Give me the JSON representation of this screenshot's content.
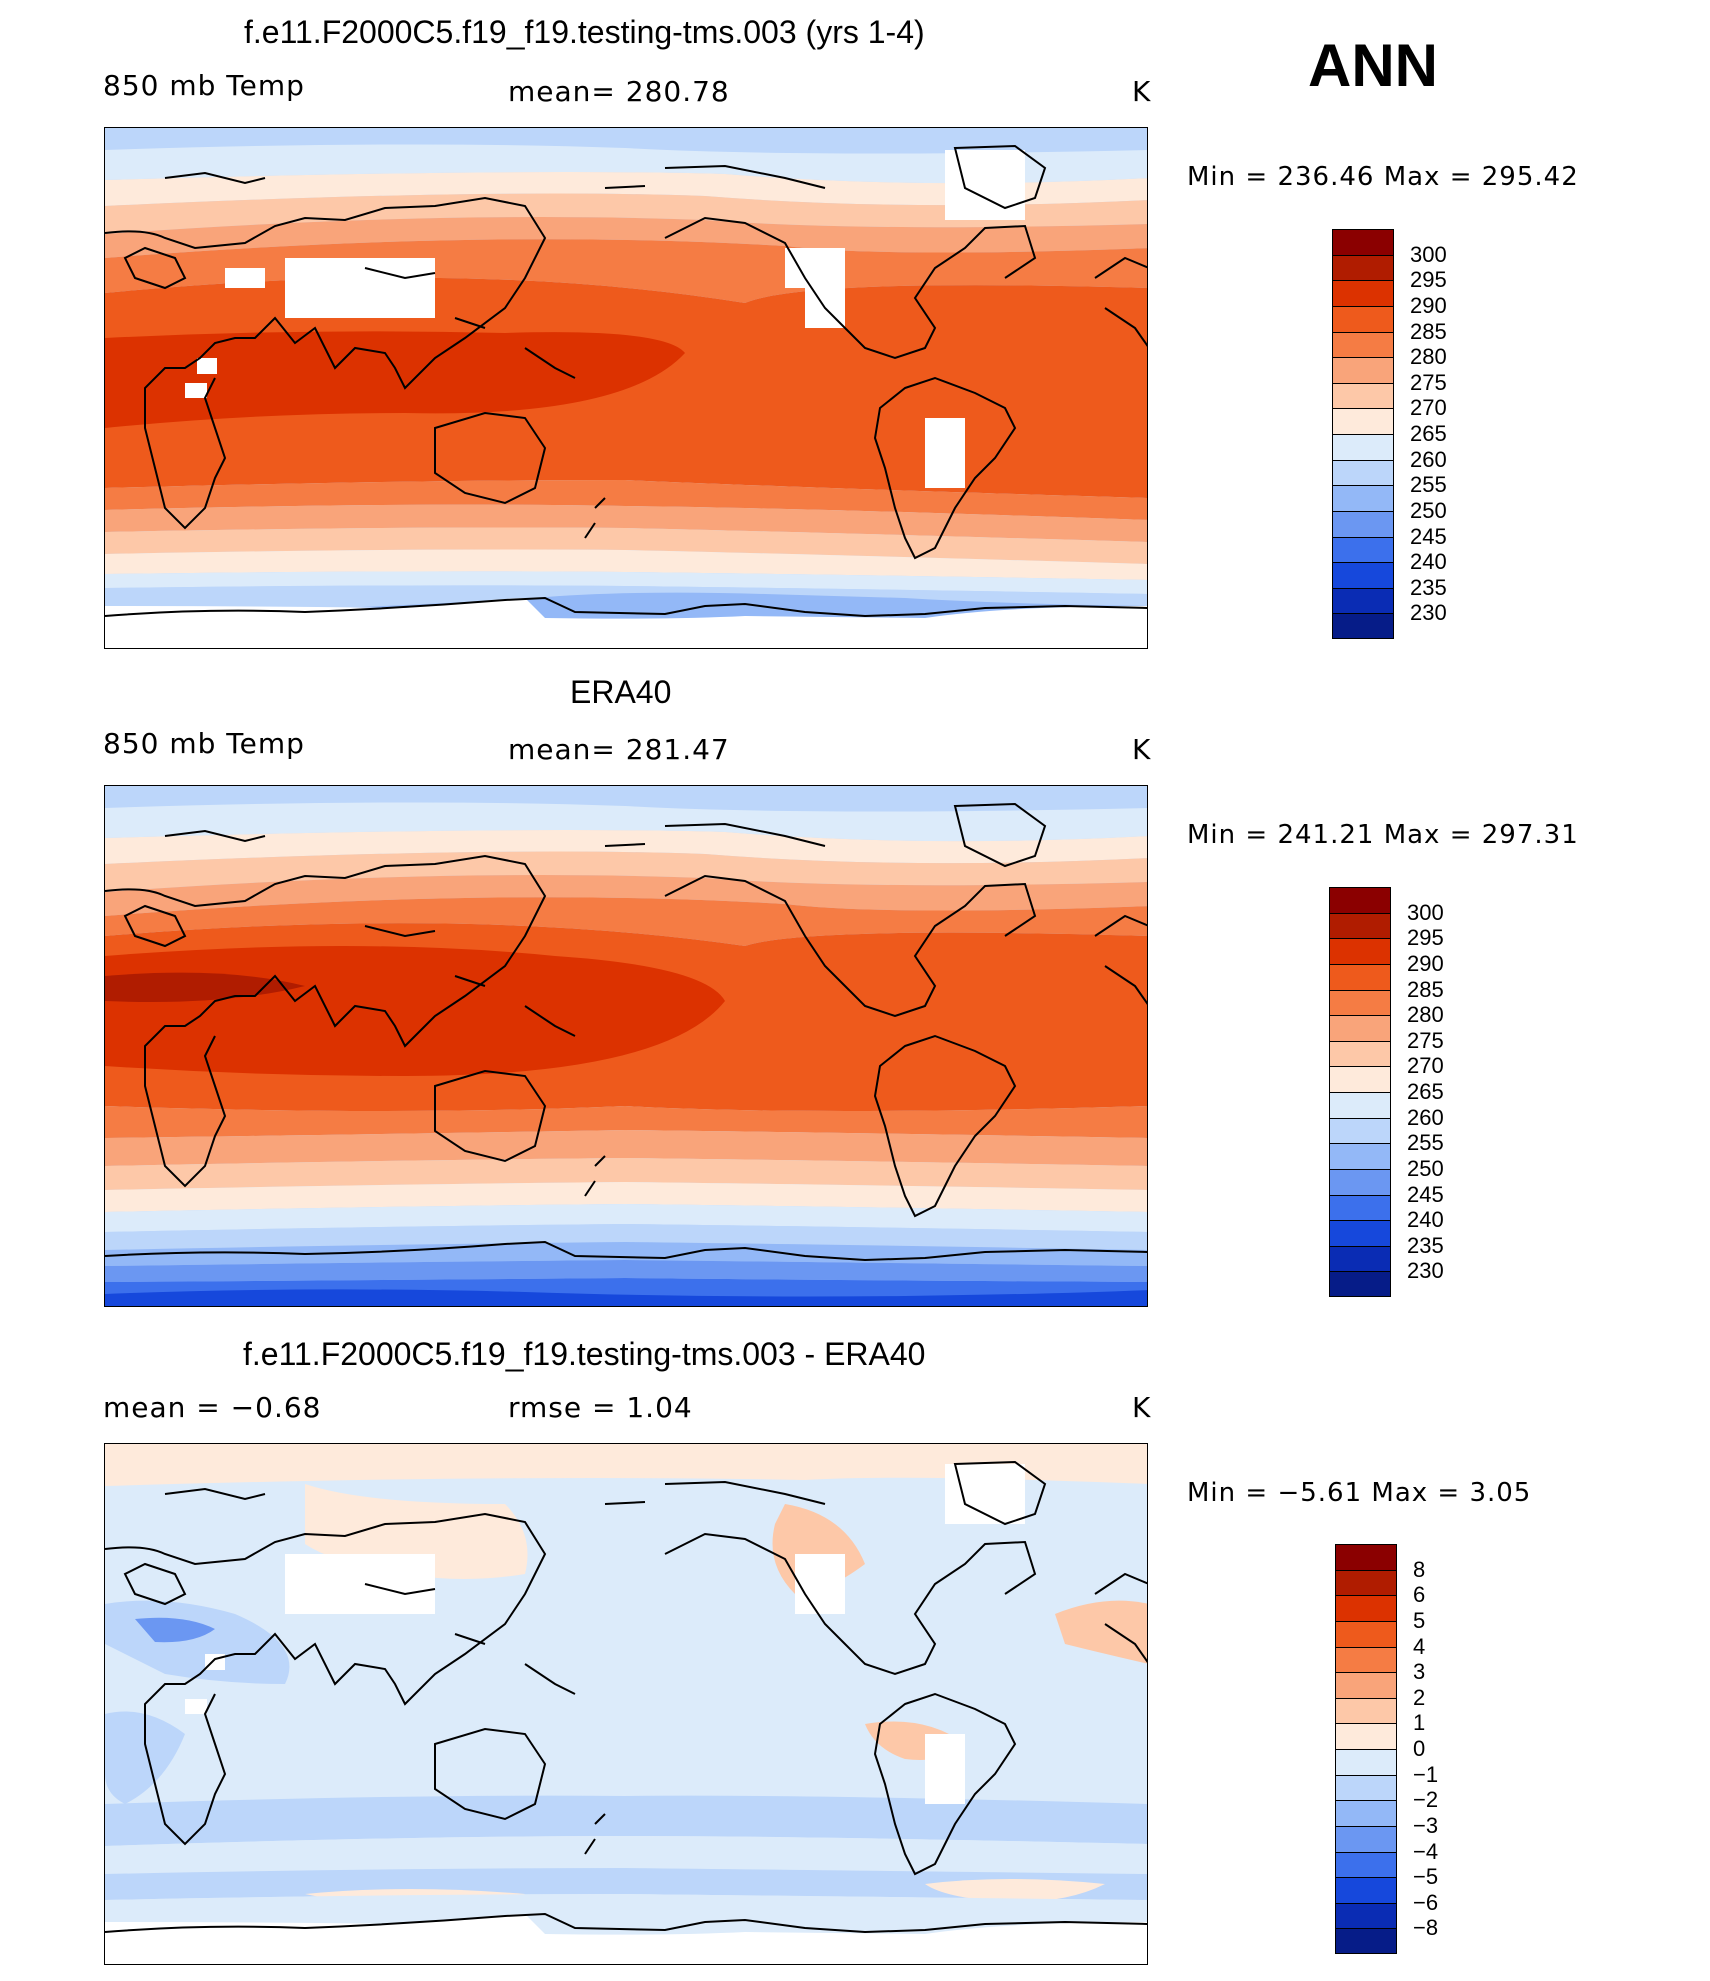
{
  "season": "ANN",
  "panels": [
    {
      "id": "model",
      "title": "f.e11.F2000C5.f19_f19.testing-tms.003 (yrs 1-4)",
      "left_label": "850 mb Temp",
      "center_label": "mean=  280.78",
      "units": "K",
      "minmax": "Min  =  236.46  Max  =  295.42",
      "colorbar_levels": [
        "300",
        "295",
        "290",
        "285",
        "280",
        "275",
        "270",
        "265",
        "260",
        "255",
        "250",
        "245",
        "240",
        "235",
        "230"
      ]
    },
    {
      "id": "obs",
      "title": "ERA40",
      "left_label": "850 mb Temp",
      "center_label": "mean=  281.47",
      "units": "K",
      "minmax": "Min  =  241.21  Max  =  297.31",
      "colorbar_levels": [
        "300",
        "295",
        "290",
        "285",
        "280",
        "275",
        "270",
        "265",
        "260",
        "255",
        "250",
        "245",
        "240",
        "235",
        "230"
      ]
    },
    {
      "id": "diff",
      "title": "f.e11.F2000C5.f19_f19.testing-tms.003 - ERA40",
      "left_label": "mean  =     −0.68",
      "center_label": "rmse  =     1.04",
      "units": "K",
      "minmax": "Min  =    −5.61  Max  =     3.05",
      "colorbar_levels": [
        "8",
        "6",
        "5",
        "4",
        "3",
        "2",
        "1",
        "0",
        "−1",
        "−2",
        "−3",
        "−4",
        "−5",
        "−6",
        "−8"
      ]
    }
  ],
  "colors": {
    "abs_scale": [
      "#8b0000",
      "#b01c00",
      "#dc3200",
      "#ee5a1c",
      "#f57c44",
      "#f9a47a",
      "#fdc8a8",
      "#feeadb",
      "#dcebfa",
      "#bcd6fa",
      "#93b8f7",
      "#6b97f2",
      "#3c70ec",
      "#1648dc",
      "#0a2cb4",
      "#061c88"
    ],
    "diff_scale": [
      "#8b0000",
      "#b01c00",
      "#dc3200",
      "#ee5a1c",
      "#f57c44",
      "#f9a47a",
      "#fdc8a8",
      "#feeadb",
      "#dcebfa",
      "#bcd6fa",
      "#93b8f7",
      "#6b97f2",
      "#3c70ec",
      "#1648dc",
      "#0a2cb4",
      "#061c88"
    ]
  }
}
